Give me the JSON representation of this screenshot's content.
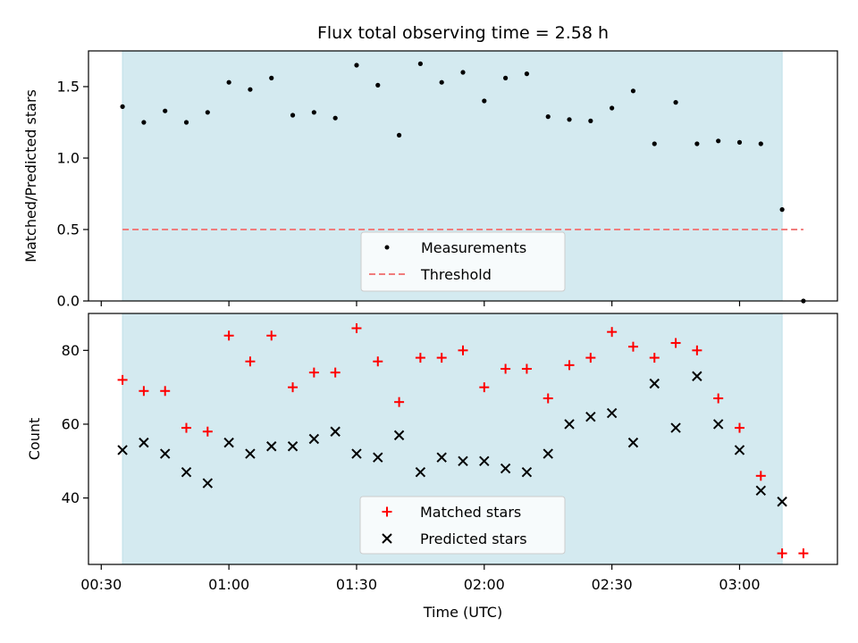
{
  "chart_data": [
    {
      "type": "scatter",
      "title": "Flux total observing time = 2.58 h",
      "xlabel": "",
      "ylabel": "Matched/Predicted stars",
      "ylim": [
        0.0,
        1.75
      ],
      "yticks": [
        "0.0",
        "0.5",
        "1.0",
        "1.5"
      ],
      "yticks_values": [
        0.0,
        0.5,
        1.0,
        1.5
      ],
      "shaded_region": {
        "x_start": "00:35",
        "x_end": "03:10",
        "color": "#d4eaf0"
      },
      "threshold": {
        "name": "Threshold",
        "y": 0.5,
        "x_start": "00:35",
        "x_end": "03:15",
        "color": "#f07c7c",
        "style": "dashed"
      },
      "legend_position": "bottom-center",
      "series": [
        {
          "name": "Measurements",
          "marker": "dot",
          "color": "#000000",
          "x": [
            "00:35",
            "00:40",
            "00:45",
            "00:50",
            "00:55",
            "01:00",
            "01:05",
            "01:10",
            "01:15",
            "01:20",
            "01:25",
            "01:30",
            "01:35",
            "01:40",
            "01:45",
            "01:50",
            "01:55",
            "02:00",
            "02:05",
            "02:10",
            "02:15",
            "02:20",
            "02:25",
            "02:30",
            "02:35",
            "02:40",
            "02:45",
            "02:50",
            "02:55",
            "03:00",
            "03:05",
            "03:10",
            "03:15"
          ],
          "y": [
            1.36,
            1.25,
            1.33,
            1.25,
            1.32,
            1.53,
            1.48,
            1.56,
            1.3,
            1.32,
            1.28,
            1.65,
            1.51,
            1.16,
            1.66,
            1.53,
            1.6,
            1.4,
            1.56,
            1.59,
            1.29,
            1.27,
            1.26,
            1.35,
            1.47,
            1.1,
            1.39,
            1.1,
            1.12,
            1.11,
            1.1,
            0.64,
            0.0
          ]
        }
      ]
    },
    {
      "type": "scatter",
      "title": "",
      "xlabel": "Time (UTC)",
      "ylabel": "Count",
      "ylim": [
        22,
        90
      ],
      "yticks": [
        "40",
        "60",
        "80"
      ],
      "yticks_values": [
        40,
        60,
        80
      ],
      "xlim": [
        "00:27",
        "03:23"
      ],
      "xticks": [
        "00:30",
        "01:00",
        "01:30",
        "02:00",
        "02:30",
        "03:00"
      ],
      "shaded_region": {
        "x_start": "00:35",
        "x_end": "03:10",
        "color": "#d4eaf0"
      },
      "legend_position": "bottom-center",
      "series": [
        {
          "name": "Matched stars",
          "marker": "plus",
          "color": "#ff0000",
          "x": [
            "00:35",
            "00:40",
            "00:45",
            "00:50",
            "00:55",
            "01:00",
            "01:05",
            "01:10",
            "01:15",
            "01:20",
            "01:25",
            "01:30",
            "01:35",
            "01:40",
            "01:45",
            "01:50",
            "01:55",
            "02:00",
            "02:05",
            "02:10",
            "02:15",
            "02:20",
            "02:25",
            "02:30",
            "02:35",
            "02:40",
            "02:45",
            "02:50",
            "02:55",
            "03:00",
            "03:05",
            "03:10",
            "03:15"
          ],
          "y": [
            72,
            69,
            69,
            59,
            58,
            84,
            77,
            84,
            70,
            74,
            74,
            86,
            77,
            66,
            78,
            78,
            80,
            70,
            75,
            75,
            67,
            76,
            78,
            85,
            81,
            78,
            82,
            80,
            67,
            59,
            46,
            25,
            25
          ]
        },
        {
          "name": "Predicted stars",
          "marker": "x",
          "color": "#000000",
          "x": [
            "00:35",
            "00:40",
            "00:45",
            "00:50",
            "00:55",
            "01:00",
            "01:05",
            "01:10",
            "01:15",
            "01:20",
            "01:25",
            "01:30",
            "01:35",
            "01:40",
            "01:45",
            "01:50",
            "01:55",
            "02:00",
            "02:05",
            "02:10",
            "02:15",
            "02:20",
            "02:25",
            "02:30",
            "02:35",
            "02:40",
            "02:45",
            "02:50",
            "02:55",
            "03:00",
            "03:05",
            "03:10"
          ],
          "y": [
            53,
            55,
            52,
            47,
            44,
            55,
            52,
            54,
            54,
            56,
            58,
            52,
            51,
            57,
            47,
            51,
            50,
            50,
            48,
            47,
            52,
            60,
            62,
            63,
            55,
            71,
            59,
            73,
            60,
            53,
            42,
            39
          ]
        }
      ]
    }
  ]
}
